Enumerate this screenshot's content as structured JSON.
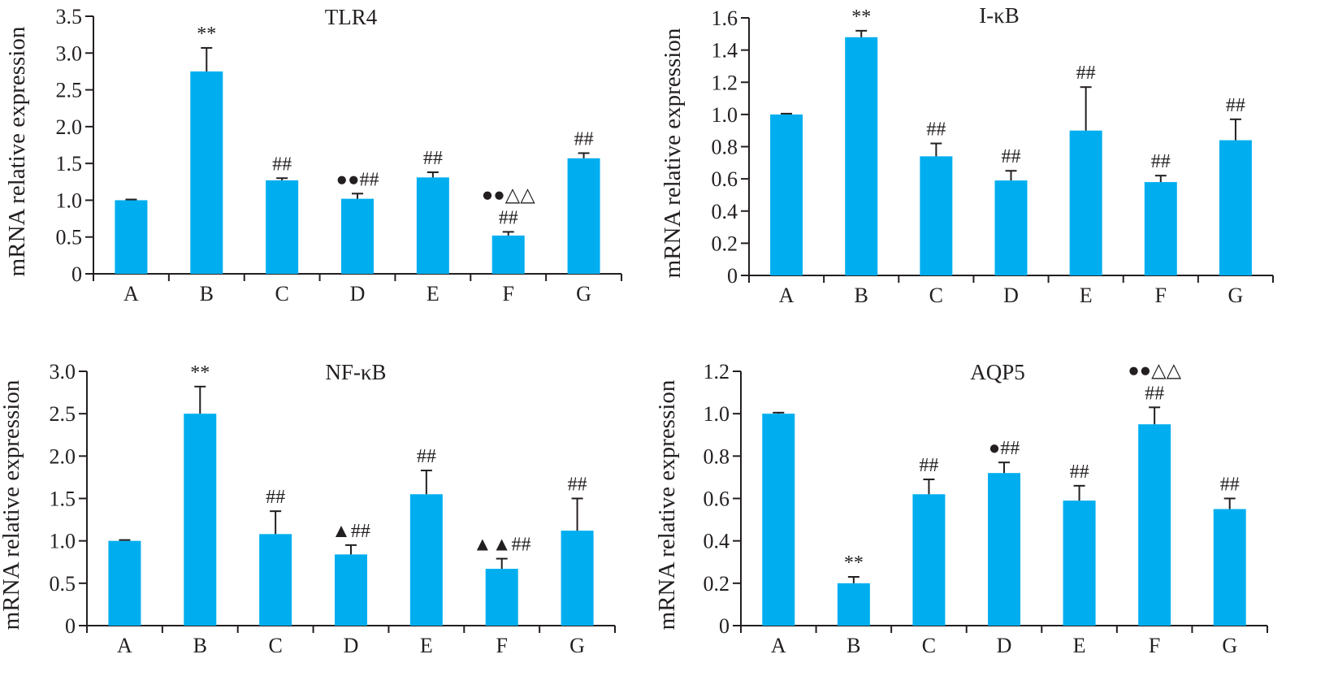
{
  "chart_data": [
    {
      "type": "bar",
      "title": "TLR4",
      "ylabel": "mRNA relative expression",
      "xlabel": "",
      "categories": [
        "A",
        "B",
        "C",
        "D",
        "E",
        "F",
        "G"
      ],
      "values": [
        1.0,
        2.75,
        1.27,
        1.02,
        1.31,
        0.52,
        1.57
      ],
      "errors": [
        0.01,
        0.32,
        0.03,
        0.07,
        0.07,
        0.05,
        0.07
      ],
      "annotations": [
        "",
        "**",
        "##",
        "●●##",
        "##",
        "●●△△|##",
        "##"
      ],
      "ylim": [
        0,
        3.5
      ],
      "yticks": [
        0,
        0.5,
        1.0,
        1.5,
        2.0,
        2.5,
        3.0,
        3.5
      ],
      "ytick_labels": [
        "0",
        "0.5",
        "1.0",
        "1.5",
        "2.0",
        "2.5",
        "3.0",
        "3.5"
      ],
      "bar_color": "#00aeef",
      "grid": false
    },
    {
      "type": "bar",
      "title": "I-κB",
      "ylabel": "mRNA relative expression",
      "xlabel": "",
      "categories": [
        "A",
        "B",
        "C",
        "D",
        "E",
        "F",
        "G"
      ],
      "values": [
        1.0,
        1.48,
        0.74,
        0.59,
        0.9,
        0.58,
        0.84
      ],
      "errors": [
        0.005,
        0.04,
        0.08,
        0.06,
        0.27,
        0.04,
        0.13
      ],
      "annotations": [
        "",
        "**",
        "##",
        "##",
        "##",
        "##",
        "##"
      ],
      "ylim": [
        0,
        1.6
      ],
      "yticks": [
        0,
        0.2,
        0.4,
        0.6,
        0.8,
        1.0,
        1.2,
        1.4,
        1.6
      ],
      "ytick_labels": [
        "0",
        "0.2",
        "0.4",
        "0.6",
        "0.8",
        "1.0",
        "1.2",
        "1.4",
        "1.6"
      ],
      "bar_color": "#00aeef",
      "grid": false
    },
    {
      "type": "bar",
      "title": "NF-κB",
      "ylabel": "mRNA relative expression",
      "xlabel": "",
      "categories": [
        "A",
        "B",
        "C",
        "D",
        "E",
        "F",
        "G"
      ],
      "values": [
        1.0,
        2.5,
        1.08,
        0.84,
        1.55,
        0.67,
        1.12
      ],
      "errors": [
        0.01,
        0.32,
        0.27,
        0.11,
        0.28,
        0.12,
        0.38
      ],
      "annotations": [
        "",
        "**",
        "##",
        "▲##",
        "##",
        "▲▲##",
        "##"
      ],
      "ylim": [
        0,
        3.0
      ],
      "yticks": [
        0,
        0.5,
        1.0,
        1.5,
        2.0,
        2.5,
        3.0
      ],
      "ytick_labels": [
        "0",
        "0.5",
        "1.0",
        "1.5",
        "2.0",
        "2.5",
        "3.0"
      ],
      "bar_color": "#00aeef",
      "grid": false
    },
    {
      "type": "bar",
      "title": "AQP5",
      "ylabel": "mRNA relative expression",
      "xlabel": "",
      "categories": [
        "A",
        "B",
        "C",
        "D",
        "E",
        "F",
        "G"
      ],
      "values": [
        1.0,
        0.2,
        0.62,
        0.72,
        0.59,
        0.95,
        0.55
      ],
      "errors": [
        0.005,
        0.03,
        0.07,
        0.05,
        0.07,
        0.08,
        0.05
      ],
      "annotations": [
        "",
        "**",
        "##",
        "●##",
        "##",
        "●●△△|##",
        "##"
      ],
      "ylim": [
        0,
        1.2
      ],
      "yticks": [
        0,
        0.2,
        0.4,
        0.6,
        0.8,
        1.0,
        1.2
      ],
      "ytick_labels": [
        "0",
        "0.2",
        "0.4",
        "0.6",
        "0.8",
        "1.0",
        "1.2"
      ],
      "bar_color": "#00aeef",
      "grid": false
    }
  ]
}
